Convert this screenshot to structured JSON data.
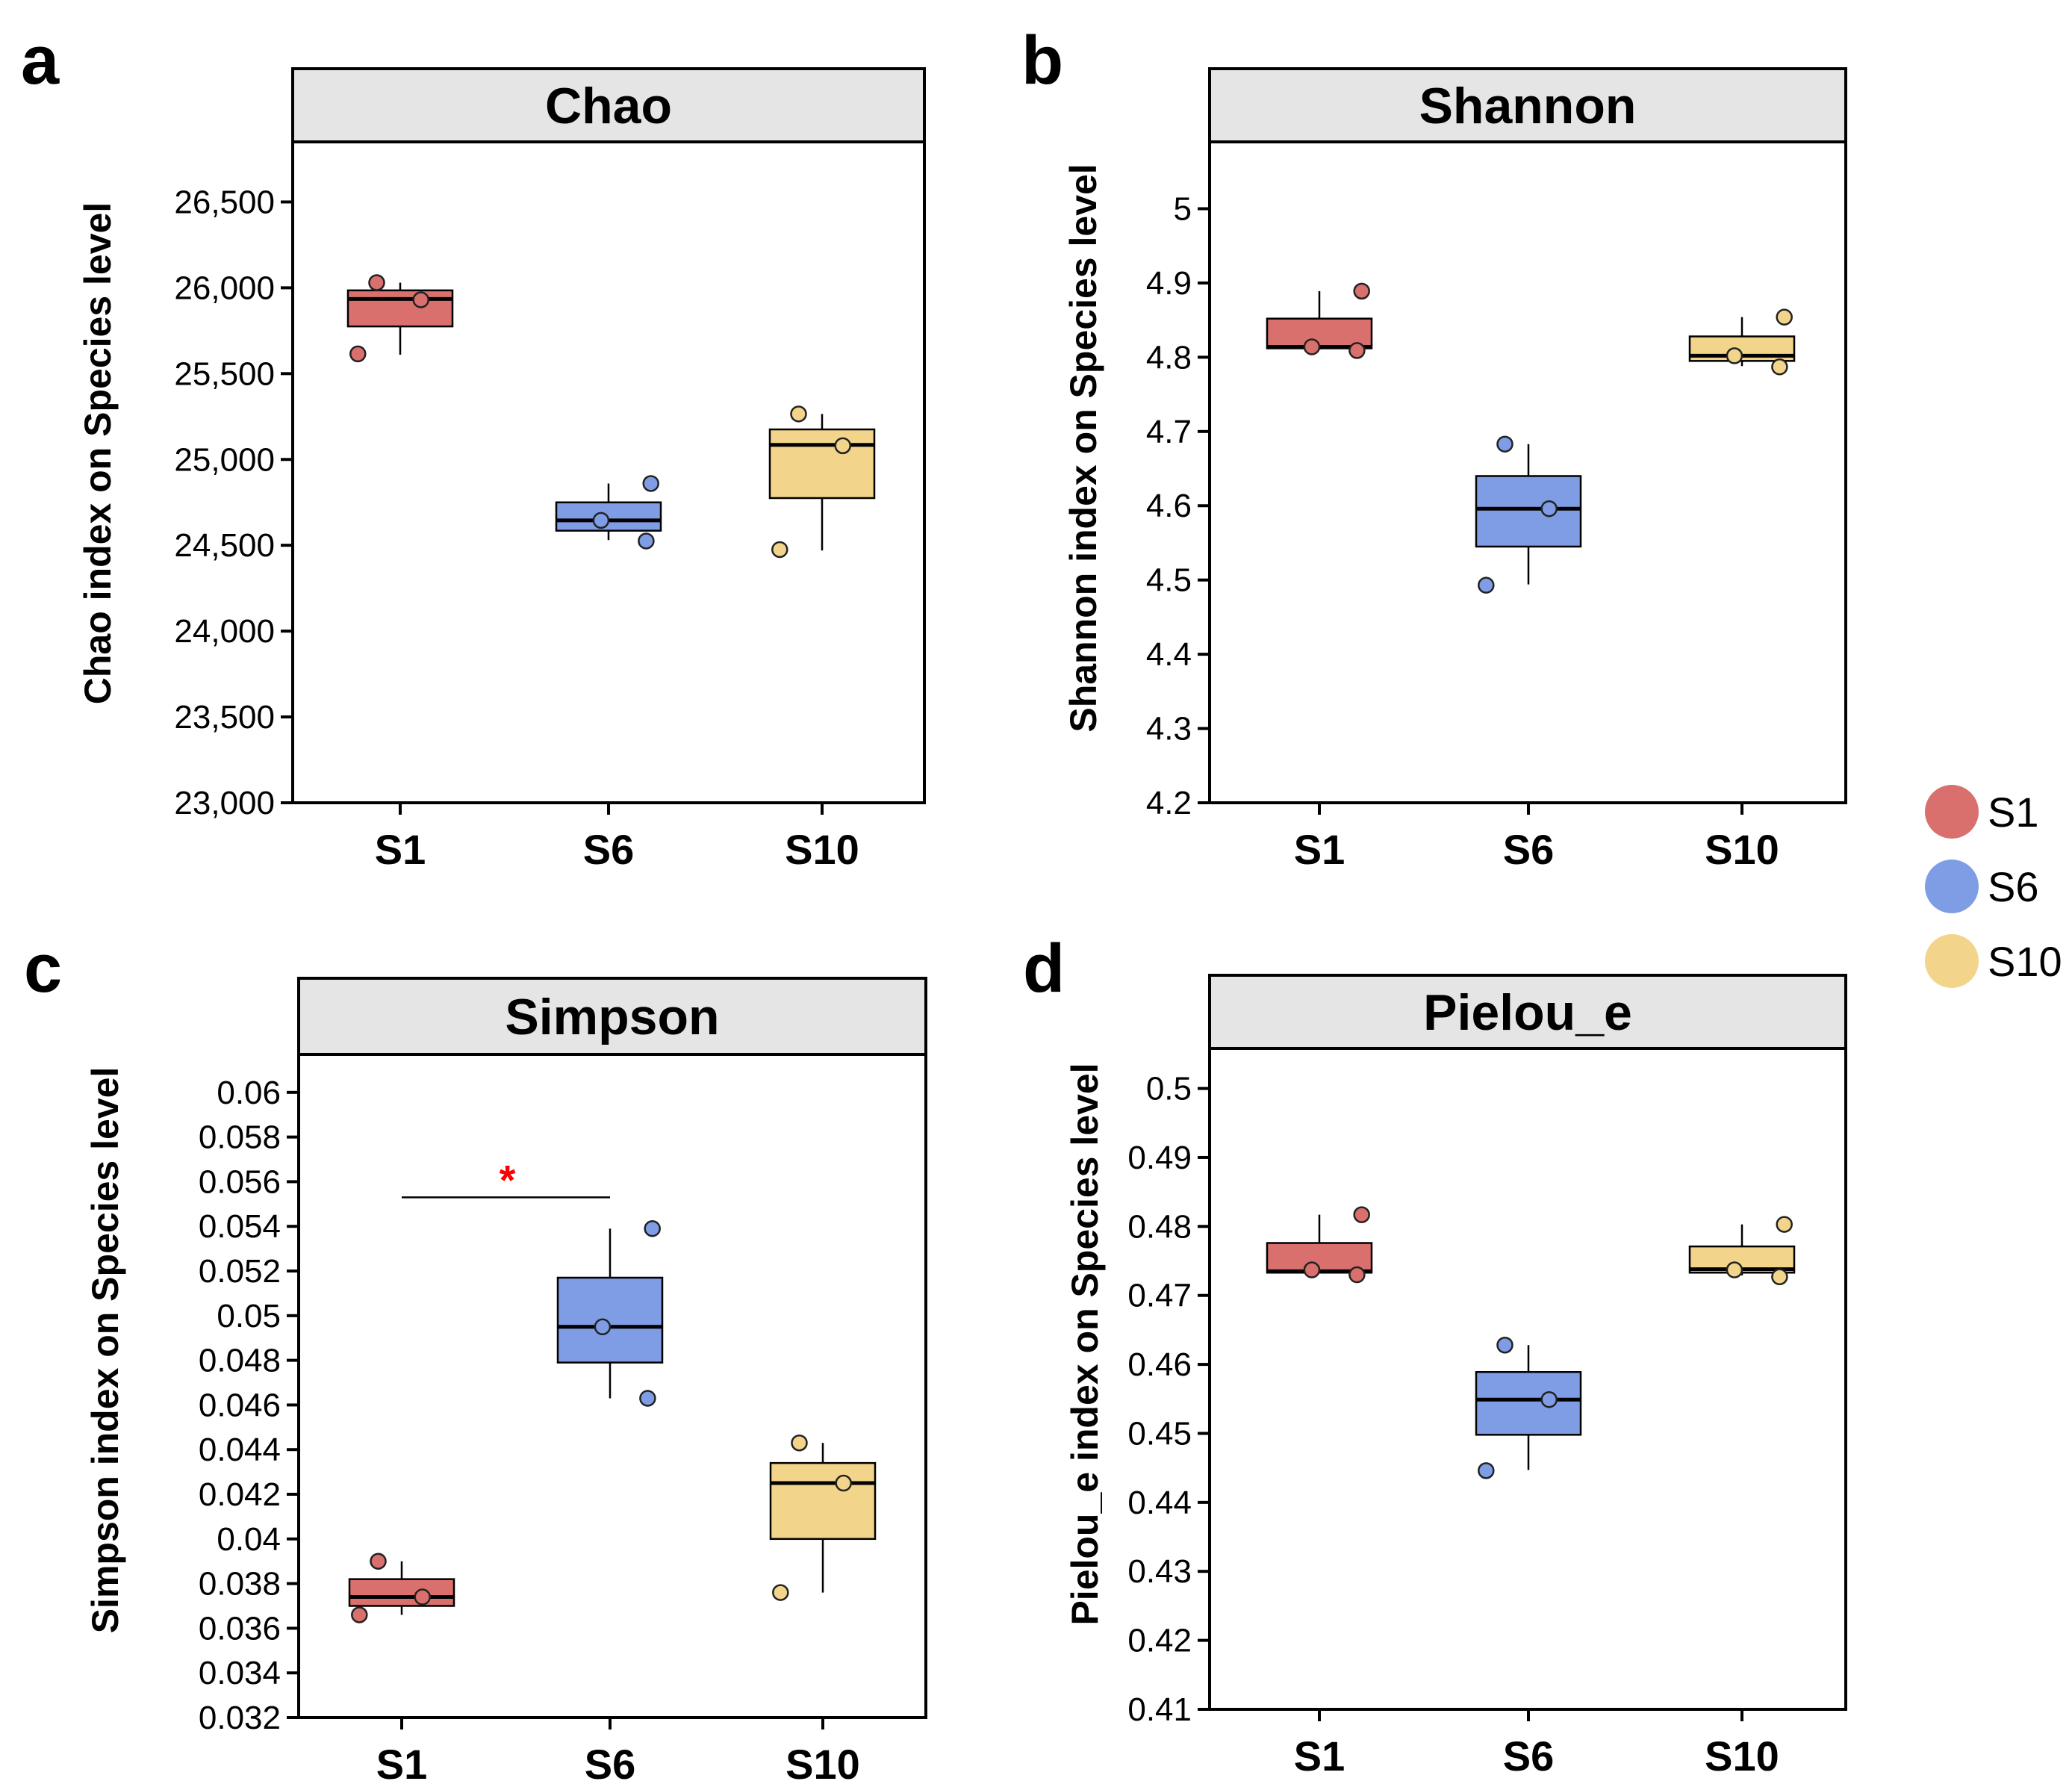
{
  "colors": {
    "S1": "#D9706D",
    "S6": "#7F9DE5",
    "S10": "#F2D48A",
    "strip": "#E5E5E5",
    "sig": "#FF0000"
  },
  "legend": [
    {
      "label": "S1",
      "color": "#D9706D"
    },
    {
      "label": "S6",
      "color": "#7F9DE5"
    },
    {
      "label": "S10",
      "color": "#F2D48A"
    }
  ],
  "chart_data": [
    {
      "type": "box",
      "panel_letter": "a",
      "title": "Chao",
      "ylabel": "Chao index on Species level",
      "categories": [
        "S1",
        "S6",
        "S10"
      ],
      "ylim": [
        23000,
        26850
      ],
      "yticks": [
        23000,
        23500,
        24000,
        24500,
        25000,
        25500,
        26000,
        26500
      ],
      "ytick_labels": [
        "23,000",
        "23,500",
        "24,000",
        "24,500",
        "25,000",
        "25,500",
        "26,000",
        "26,500"
      ],
      "boxes": [
        {
          "group": "S1",
          "whisker_low": 25610,
          "q1": 25775,
          "median": 25935,
          "q3": 25985,
          "whisker_high": 26030,
          "points": [
            26030,
            25930,
            25615
          ]
        },
        {
          "group": "S6",
          "whisker_low": 24530,
          "q1": 24585,
          "median": 24645,
          "q3": 24750,
          "whisker_high": 24860,
          "points": [
            24860,
            24645,
            24525
          ]
        },
        {
          "group": "S10",
          "whisker_low": 24470,
          "q1": 24775,
          "median": 25085,
          "q3": 25175,
          "whisker_high": 25265,
          "points": [
            25265,
            25080,
            24475
          ]
        }
      ]
    },
    {
      "type": "box",
      "panel_letter": "b",
      "title": "Shannon",
      "ylabel": "Shannon index on Species level",
      "categories": [
        "S1",
        "S6",
        "S10"
      ],
      "ylim": [
        4.2,
        5.09
      ],
      "yticks": [
        4.2,
        4.3,
        4.4,
        4.5,
        4.6,
        4.7,
        4.8,
        4.9,
        5.0
      ],
      "ytick_labels": [
        "4.2",
        "4.3",
        "4.4",
        "4.5",
        "4.6",
        "4.7",
        "4.8",
        "4.9",
        "5"
      ],
      "boxes": [
        {
          "group": "S1",
          "whisker_low": 4.81,
          "q1": 4.812,
          "median": 4.814,
          "q3": 4.852,
          "whisker_high": 4.889,
          "points": [
            4.889,
            4.814,
            4.809
          ]
        },
        {
          "group": "S6",
          "whisker_low": 4.494,
          "q1": 4.545,
          "median": 4.596,
          "q3": 4.64,
          "whisker_high": 4.683,
          "points": [
            4.683,
            4.596,
            4.493
          ]
        },
        {
          "group": "S10",
          "whisker_low": 4.788,
          "q1": 4.795,
          "median": 4.802,
          "q3": 4.828,
          "whisker_high": 4.854,
          "points": [
            4.854,
            4.802,
            4.787
          ]
        }
      ]
    },
    {
      "type": "box",
      "panel_letter": "c",
      "title": "Simpson",
      "ylabel": "Simpson index on Species level",
      "categories": [
        "S1",
        "S6",
        "S10"
      ],
      "ylim": [
        0.032,
        0.0617
      ],
      "yticks": [
        0.032,
        0.034,
        0.036,
        0.038,
        0.04,
        0.042,
        0.044,
        0.046,
        0.048,
        0.05,
        0.052,
        0.054,
        0.056,
        0.058,
        0.06
      ],
      "ytick_labels": [
        "0.032",
        "0.034",
        "0.036",
        "0.038",
        "0.04",
        "0.042",
        "0.044",
        "0.046",
        "0.048",
        "0.05",
        "0.052",
        "0.054",
        "0.056",
        "0.058",
        "0.06"
      ],
      "boxes": [
        {
          "group": "S1",
          "whisker_low": 0.0366,
          "q1": 0.037,
          "median": 0.0374,
          "q3": 0.0382,
          "whisker_high": 0.039,
          "points": [
            0.039,
            0.0374,
            0.0366
          ]
        },
        {
          "group": "S6",
          "whisker_low": 0.0463,
          "q1": 0.0479,
          "median": 0.0495,
          "q3": 0.0517,
          "whisker_high": 0.0539,
          "points": [
            0.0539,
            0.0495,
            0.0463
          ]
        },
        {
          "group": "S10",
          "whisker_low": 0.0376,
          "q1": 0.04,
          "median": 0.0425,
          "q3": 0.0434,
          "whisker_high": 0.0443,
          "points": [
            0.0443,
            0.0425,
            0.0376
          ]
        }
      ],
      "significance": {
        "groups": [
          "S1",
          "S6"
        ],
        "y": 0.0553,
        "label": "*"
      }
    },
    {
      "type": "box",
      "panel_letter": "d",
      "title": "Pielou_e",
      "ylabel": "Pielou_e index on Species level",
      "categories": [
        "S1",
        "S6",
        "S10"
      ],
      "ylim": [
        0.41,
        0.5058
      ],
      "yticks": [
        0.41,
        0.42,
        0.43,
        0.44,
        0.45,
        0.46,
        0.47,
        0.48,
        0.49,
        0.5
      ],
      "ytick_labels": [
        "0.41",
        "0.42",
        "0.43",
        "0.44",
        "0.45",
        "0.46",
        "0.47",
        "0.48",
        "0.49",
        "0.5"
      ],
      "boxes": [
        {
          "group": "S1",
          "whisker_low": 0.4732,
          "q1": 0.4733,
          "median": 0.4735,
          "q3": 0.4776,
          "whisker_high": 0.4817,
          "points": [
            0.4817,
            0.4737,
            0.473
          ]
        },
        {
          "group": "S6",
          "whisker_low": 0.4447,
          "q1": 0.4498,
          "median": 0.4549,
          "q3": 0.4589,
          "whisker_high": 0.4628,
          "points": [
            0.4628,
            0.4549,
            0.4446
          ]
        },
        {
          "group": "S10",
          "whisker_low": 0.4729,
          "q1": 0.4733,
          "median": 0.4738,
          "q3": 0.4771,
          "whisker_high": 0.4803,
          "points": [
            0.4803,
            0.4737,
            0.4727
          ]
        }
      ]
    }
  ]
}
